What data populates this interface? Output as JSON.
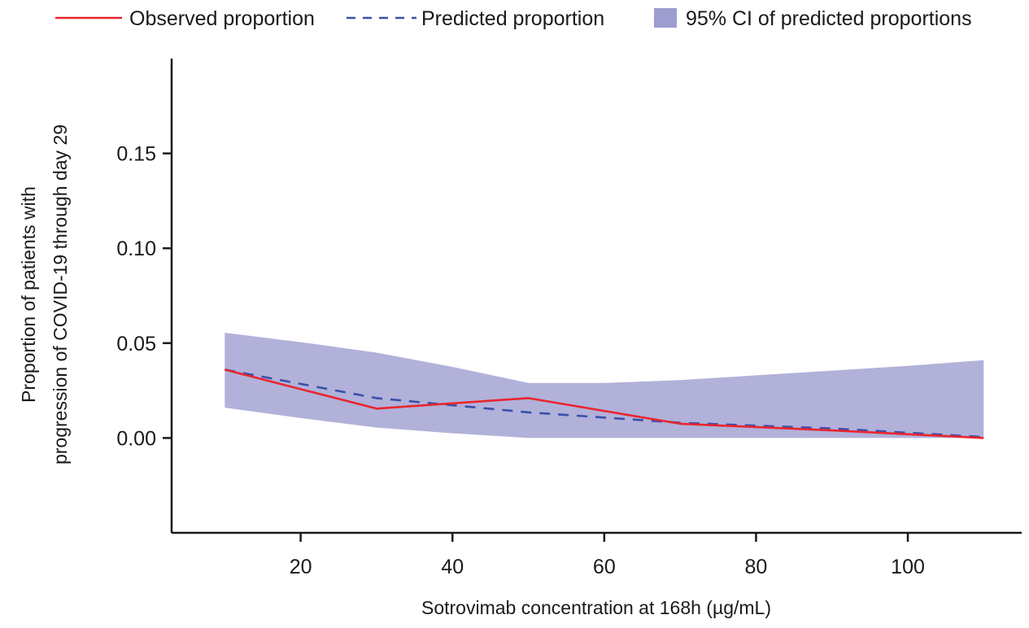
{
  "chart_data": {
    "type": "line",
    "title": "",
    "xlabel": "Sotrovimab concentration at 168h (µg/mL)",
    "ylabel": "Proportion of patients with progression of COVID-19 through day 29",
    "ylabel_lines": [
      "Proportion of patients with",
      "progression of COVID-19 through day 29"
    ],
    "xlim": [
      3,
      115
    ],
    "ylim": [
      -0.05,
      0.2
    ],
    "xticks": [
      20,
      40,
      60,
      80,
      100
    ],
    "xtick_labels": [
      "20",
      "40",
      "60",
      "80",
      "100"
    ],
    "yticks": [
      0.0,
      0.05,
      0.1,
      0.15
    ],
    "ytick_labels": [
      "0.00",
      "0.05",
      "0.10",
      "0.15"
    ],
    "grid": false,
    "legend_position": "top",
    "series": [
      {
        "name": "Observed proportion",
        "style": "solid",
        "color": "#e8262d",
        "x": [
          10,
          30,
          50,
          70,
          90,
          110
        ],
        "y": [
          0.036,
          0.0155,
          0.021,
          0.0075,
          0.004,
          0.0
        ]
      },
      {
        "name": "Predicted proportion",
        "style": "dashed",
        "color": "#3a4fa8",
        "x": [
          10,
          30,
          50,
          70,
          90,
          110
        ],
        "y": [
          0.036,
          0.021,
          0.0135,
          0.008,
          0.005,
          0.0005
        ]
      }
    ],
    "band": {
      "name": "95% CI of predicted proportions",
      "color": "#a9a9d6",
      "x": [
        10,
        20,
        30,
        40,
        50,
        60,
        70,
        80,
        90,
        100,
        110
      ],
      "lower": [
        0.016,
        0.0105,
        0.0055,
        0.0025,
        0.0,
        0.0,
        0.0,
        0.0,
        0.0,
        0.0,
        0.0
      ],
      "upper": [
        0.0555,
        0.0505,
        0.045,
        0.0375,
        0.029,
        0.029,
        0.0305,
        0.033,
        0.0355,
        0.038,
        0.041
      ]
    }
  }
}
